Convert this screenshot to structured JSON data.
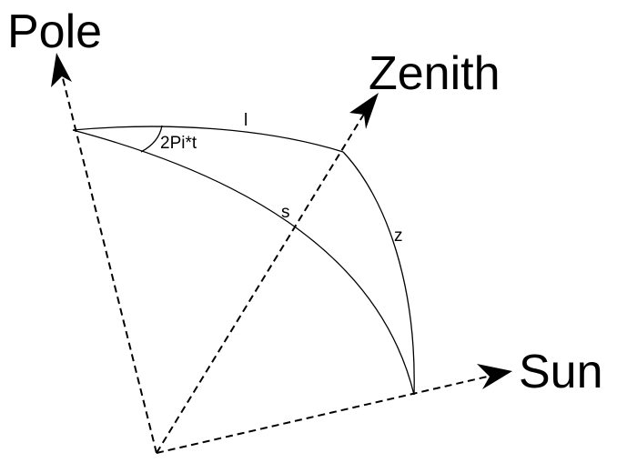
{
  "diagram": {
    "labels": {
      "pole": "Pole",
      "zenith": "Zenith",
      "sun": "Sun",
      "l": "l",
      "s": "s",
      "z": "z",
      "angle": "2Pi*t"
    }
  }
}
